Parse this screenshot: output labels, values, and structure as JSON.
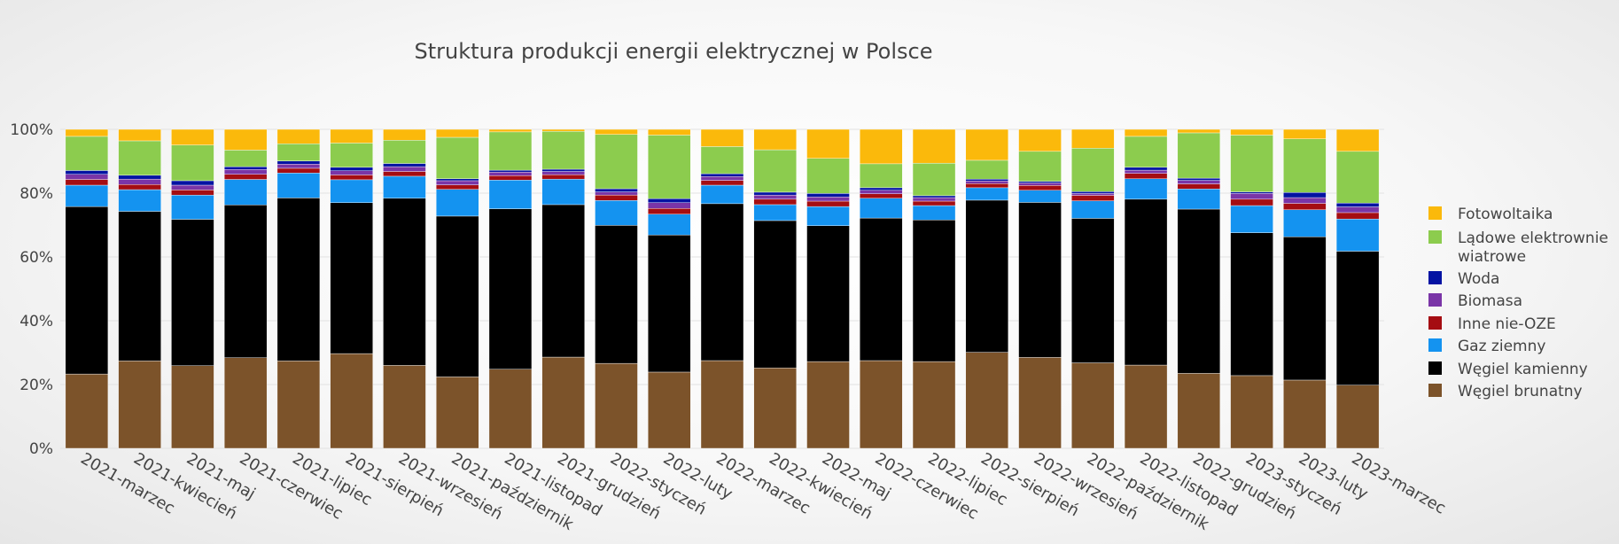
{
  "chart_data": {
    "type": "bar",
    "stacked": true,
    "title": "Struktura produkcji energii elektrycznej w Polsce",
    "xlabel": "",
    "ylabel": "",
    "ylim": [
      0,
      100
    ],
    "yticks": [
      "0%",
      "20%",
      "40%",
      "60%",
      "80%",
      "100%"
    ],
    "legend_position": "right",
    "categories": [
      "2021-marzec",
      "2021-kwiecień",
      "2021-maj",
      "2021-czerwiec",
      "2021-lipiec",
      "2021-sierpień",
      "2021-wrzesień",
      "2021-październik",
      "2021-listopad",
      "2021-grudzień",
      "2022-styczeń",
      "2022-luty",
      "2022-marzec",
      "2022-kwiecień",
      "2022-maj",
      "2022-czerwiec",
      "2022-lipiec",
      "2022-sierpień",
      "2022-wrzesień",
      "2022-październik",
      "2022-listopad",
      "2022-grudzień",
      "2023-styczeń",
      "2023-luty",
      "2023-marzec"
    ],
    "series": [
      {
        "name": "Węgiel brunatny",
        "color": "#7c532a",
        "values": [
          23.3,
          27.4,
          25.9,
          28.4,
          27.4,
          29.7,
          26.0,
          22.4,
          24.8,
          28.6,
          26.9,
          23.9,
          27.5,
          25.2,
          27.2,
          27.5,
          27.2,
          30.1,
          28.5,
          26.8,
          26.1,
          23.5,
          22.8,
          21.4,
          19.8
        ]
      },
      {
        "name": "Węgiel kamienny",
        "color": "#000000",
        "values": [
          52.5,
          46.9,
          45.9,
          47.9,
          51.1,
          47.3,
          52.4,
          50.4,
          50.3,
          47.8,
          43.7,
          43.0,
          49.2,
          46.2,
          42.6,
          44.7,
          44.4,
          47.7,
          48.6,
          45.3,
          52.0,
          51.5,
          44.8,
          44.9,
          42.0
        ]
      },
      {
        "name": "Gaz ziemny",
        "color": "#1493f0",
        "values": [
          6.7,
          6.8,
          7.6,
          8.0,
          7.8,
          7.2,
          6.9,
          8.4,
          9.0,
          8.0,
          7.9,
          6.5,
          5.8,
          5.0,
          6.0,
          6.2,
          4.5,
          3.9,
          3.8,
          5.5,
          6.4,
          6.3,
          8.5,
          8.5,
          10.1
        ]
      },
      {
        "name": "Inne nie-OZE",
        "color": "#a50d12",
        "values": [
          1.8,
          1.6,
          1.6,
          1.6,
          1.5,
          1.5,
          1.5,
          1.4,
          1.4,
          1.4,
          1.7,
          1.8,
          1.5,
          1.7,
          1.7,
          1.4,
          1.4,
          1.3,
          1.5,
          1.7,
          1.7,
          1.6,
          2.0,
          2.0,
          2.0
        ]
      },
      {
        "name": "Biomasa",
        "color": "#7a35a7",
        "values": [
          1.6,
          1.7,
          1.5,
          1.5,
          1.3,
          1.3,
          1.5,
          1.3,
          1.1,
          1.0,
          1.0,
          1.8,
          1.2,
          1.3,
          1.3,
          1.1,
          1.1,
          0.8,
          0.8,
          0.6,
          1.0,
          1.1,
          1.8,
          1.8,
          1.8
        ]
      },
      {
        "name": "Woda",
        "color": "#0413a3",
        "values": [
          1.2,
          1.2,
          1.4,
          0.9,
          1.0,
          1.1,
          1.0,
          0.6,
          0.6,
          0.7,
          1.0,
          1.3,
          0.9,
          0.9,
          1.1,
          0.8,
          0.6,
          0.6,
          0.5,
          0.6,
          0.9,
          0.7,
          0.5,
          1.6,
          1.2
        ]
      },
      {
        "name": "Lądowe elektrownie wiatrowe",
        "color": "#8ccc4e",
        "values": [
          10.7,
          10.8,
          11.2,
          5.2,
          5.4,
          7.6,
          7.3,
          13.0,
          12.0,
          11.9,
          17.2,
          19.9,
          8.5,
          13.3,
          11.0,
          7.5,
          10.2,
          5.9,
          9.4,
          13.6,
          9.7,
          14.2,
          17.8,
          16.8,
          16.2
        ]
      },
      {
        "name": "Fotowoltaika",
        "color": "#fbb90b",
        "values": [
          2.2,
          3.6,
          4.9,
          6.5,
          4.5,
          4.3,
          3.4,
          2.5,
          0.8,
          0.6,
          1.6,
          1.8,
          5.4,
          6.4,
          9.1,
          10.8,
          10.6,
          9.7,
          6.9,
          5.9,
          2.2,
          1.1,
          1.8,
          3.0,
          6.9
        ]
      }
    ],
    "legend_labels": [
      [
        "Fotowoltaika"
      ],
      [
        "Lądowe elektrownie",
        "wiatrowe"
      ],
      [
        "Woda"
      ],
      [
        "Biomasa"
      ],
      [
        "Inne nie-OZE"
      ],
      [
        "Gaz ziemny"
      ],
      [
        "Węgiel kamienny"
      ],
      [
        "Węgiel brunatny"
      ]
    ]
  }
}
